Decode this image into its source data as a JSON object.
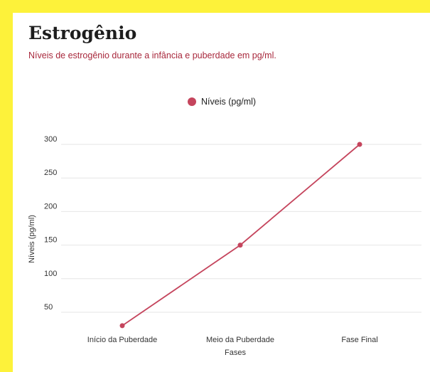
{
  "header": {
    "title": "Estrogênio",
    "subtitle": "Níveis de estrogênio durante a infância e puberdade em pg/ml."
  },
  "colors": {
    "background": "#fdf23a",
    "card": "#ffffff",
    "series": "#c5455d",
    "subtitle": "#a8283c",
    "grid": "#e6e6e6"
  },
  "chart_data": {
    "type": "line",
    "categories": [
      "Início da Puberdade",
      "Meio da Puberdade",
      "Fase Final"
    ],
    "series": [
      {
        "name": "Níveis (pg/ml)",
        "values": [
          30,
          150,
          300
        ]
      }
    ],
    "xlabel": "Fases",
    "ylabel": "Níveis (pg/ml)",
    "yticks": [
      50,
      100,
      150,
      200,
      250,
      300
    ],
    "ylim": [
      30,
      300
    ],
    "grid": true,
    "legend": "top-center"
  }
}
